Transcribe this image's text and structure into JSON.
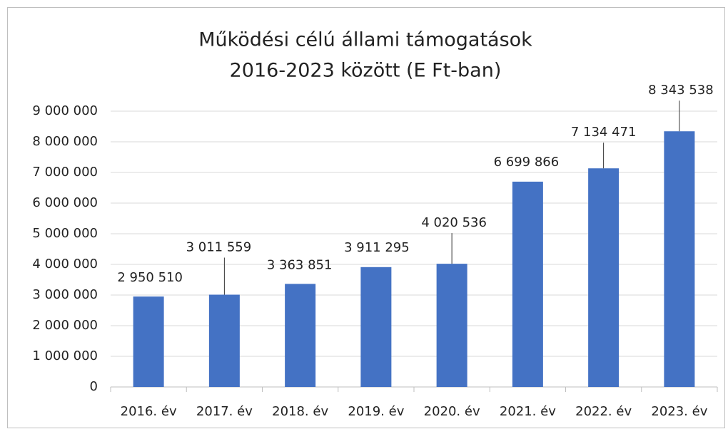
{
  "chart_data": {
    "type": "bar",
    "title": [
      "Működési célú állami támogatások",
      "2016-2023 között (E Ft-ban)"
    ],
    "categories": [
      "2016. év",
      "2017. év",
      "2018. év",
      "2019. év",
      "2020. év",
      "2021. év",
      "2022. év",
      "2023. év"
    ],
    "values": [
      2950510,
      3011559,
      3363851,
      3911295,
      4020536,
      6699866,
      7134471,
      8343538
    ],
    "value_labels": [
      "2 950 510",
      "3 011 559",
      "3 363 851",
      "3 911 295",
      "4 020 536",
      "6 699 866",
      "7 134 471",
      "8 343 538"
    ],
    "color": "#4472c4",
    "ylim": [
      0,
      9000000
    ],
    "yticks": [
      0,
      {
        "value": 1000000,
        "label": "1 000 000"
      },
      {
        "value": 2000000,
        "label": "2 000 000"
      },
      {
        "value": 3000000,
        "label": "3 000 000"
      },
      {
        "value": 4000000,
        "label": "4 000 000"
      },
      {
        "value": 5000000,
        "label": "5 000 000"
      },
      {
        "value": 6000000,
        "label": "6 000 000"
      },
      {
        "value": 7000000,
        "label": "7 000 000"
      },
      {
        "value": 8000000,
        "label": "8 000 000"
      },
      {
        "value": 9000000,
        "label": "9 000 000"
      }
    ],
    "grid": true
  }
}
